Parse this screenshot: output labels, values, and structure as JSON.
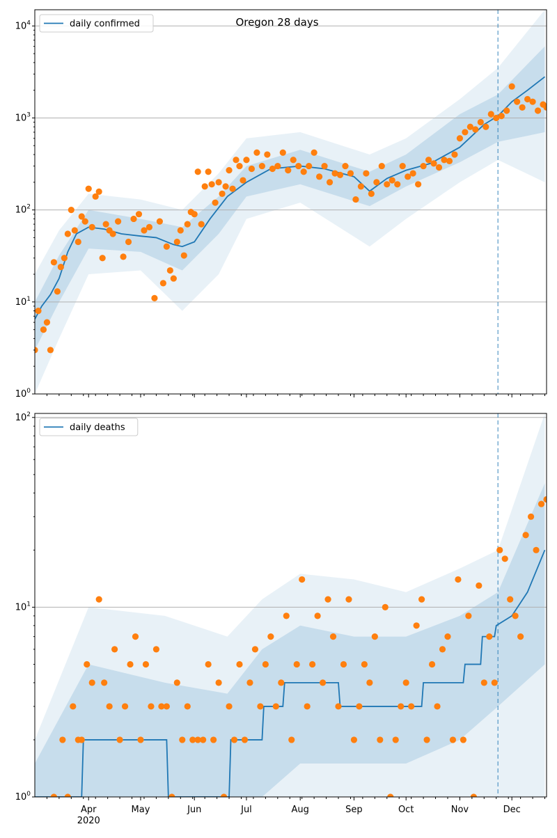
{
  "figure_title": "Oregon 28 days",
  "colors": {
    "model_line": "#1f77b4",
    "band": "#1f77b4",
    "observed_points": "#ff7f0e",
    "grid": "#b0b0b0",
    "forecast_marker": "#1f77b4"
  },
  "chart_data": [
    {
      "type": "line",
      "panel": "top",
      "title": "Oregon 28 days",
      "legend": [
        "daily confirmed"
      ],
      "legend_position": "top-left",
      "xlabel": "",
      "ylabel": "",
      "x_tick_labels": [
        "Apr\n2020",
        "May",
        "Jun",
        "Jul",
        "Aug",
        "Sep",
        "Oct",
        "Nov",
        "Dec"
      ],
      "x_tick_dates": [
        "2020-04-01",
        "2020-05-01",
        "2020-06-01",
        "2020-07-01",
        "2020-08-01",
        "2020-09-01",
        "2020-10-01",
        "2020-11-01",
        "2020-12-01"
      ],
      "xlim": [
        "2020-03-01",
        "2020-12-21"
      ],
      "yscale": "log",
      "ylim": [
        1,
        15000
      ],
      "y_tick_labels": [
        "10^0",
        "10^1",
        "10^2",
        "10^3",
        "10^4"
      ],
      "grid": "horizontal major",
      "forecast_start": "2020-11-23",
      "series": [
        {
          "name": "daily confirmed",
          "kind": "line",
          "x": [
            "2020-03-01",
            "2020-03-05",
            "2020-03-10",
            "2020-03-15",
            "2020-03-20",
            "2020-03-25",
            "2020-04-01",
            "2020-04-10",
            "2020-04-20",
            "2020-05-01",
            "2020-05-10",
            "2020-05-20",
            "2020-05-25",
            "2020-06-01",
            "2020-06-10",
            "2020-06-20",
            "2020-07-01",
            "2020-07-15",
            "2020-08-01",
            "2020-08-15",
            "2020-09-01",
            "2020-09-10",
            "2020-09-20",
            "2020-10-01",
            "2020-10-15",
            "2020-11-01",
            "2020-11-15",
            "2020-11-23",
            "2020-12-01",
            "2020-12-10",
            "2020-12-20"
          ],
          "y": [
            6.5,
            9,
            12,
            18,
            35,
            55,
            65,
            62,
            55,
            52,
            50,
            42,
            40,
            45,
            80,
            140,
            200,
            280,
            300,
            280,
            230,
            160,
            220,
            270,
            320,
            480,
            850,
            1050,
            1500,
            2000,
            2800
          ]
        },
        {
          "name": "outer band",
          "kind": "band",
          "x": [
            "2020-03-01",
            "2020-03-15",
            "2020-04-01",
            "2020-05-01",
            "2020-05-25",
            "2020-06-15",
            "2020-07-01",
            "2020-08-01",
            "2020-09-10",
            "2020-10-01",
            "2020-11-01",
            "2020-11-23",
            "2020-12-20"
          ],
          "lower": [
            1,
            4,
            20,
            22,
            8,
            20,
            80,
            120,
            40,
            80,
            200,
            350,
            200
          ],
          "upper": [
            20,
            60,
            150,
            130,
            100,
            250,
            600,
            700,
            400,
            600,
            1600,
            3500,
            15000
          ]
        },
        {
          "name": "inner band",
          "kind": "band",
          "x": [
            "2020-03-01",
            "2020-03-15",
            "2020-04-01",
            "2020-05-01",
            "2020-05-25",
            "2020-06-15",
            "2020-07-01",
            "2020-08-01",
            "2020-09-10",
            "2020-10-01",
            "2020-11-01",
            "2020-11-23",
            "2020-12-20"
          ],
          "lower": [
            3,
            10,
            38,
            35,
            22,
            55,
            140,
            190,
            110,
            180,
            330,
            550,
            700
          ],
          "upper": [
            10,
            32,
            100,
            80,
            65,
            140,
            300,
            450,
            260,
            400,
            1100,
            1800,
            6000
          ]
        },
        {
          "name": "observed",
          "kind": "scatter",
          "x": [
            "2020-03-01",
            "2020-03-03",
            "2020-03-06",
            "2020-03-08",
            "2020-03-10",
            "2020-03-12",
            "2020-03-14",
            "2020-03-16",
            "2020-03-18",
            "2020-03-20",
            "2020-03-22",
            "2020-03-24",
            "2020-03-26",
            "2020-03-28",
            "2020-03-30",
            "2020-04-01",
            "2020-04-03",
            "2020-04-05",
            "2020-04-07",
            "2020-04-09",
            "2020-04-11",
            "2020-04-13",
            "2020-04-15",
            "2020-04-18",
            "2020-04-21",
            "2020-04-24",
            "2020-04-27",
            "2020-04-30",
            "2020-05-03",
            "2020-05-06",
            "2020-05-09",
            "2020-05-12",
            "2020-05-14",
            "2020-05-16",
            "2020-05-18",
            "2020-05-20",
            "2020-05-22",
            "2020-05-24",
            "2020-05-26",
            "2020-05-28",
            "2020-05-30",
            "2020-06-01",
            "2020-06-03",
            "2020-06-05",
            "2020-06-07",
            "2020-06-09",
            "2020-06-11",
            "2020-06-13",
            "2020-06-15",
            "2020-06-17",
            "2020-06-19",
            "2020-06-21",
            "2020-06-23",
            "2020-06-25",
            "2020-06-27",
            "2020-06-29",
            "2020-07-01",
            "2020-07-04",
            "2020-07-07",
            "2020-07-10",
            "2020-07-13",
            "2020-07-16",
            "2020-07-19",
            "2020-07-22",
            "2020-07-25",
            "2020-07-28",
            "2020-07-31",
            "2020-08-03",
            "2020-08-06",
            "2020-08-09",
            "2020-08-12",
            "2020-08-15",
            "2020-08-18",
            "2020-08-21",
            "2020-08-24",
            "2020-08-27",
            "2020-08-30",
            "2020-09-02",
            "2020-09-05",
            "2020-09-08",
            "2020-09-11",
            "2020-09-14",
            "2020-09-17",
            "2020-09-20",
            "2020-09-23",
            "2020-09-26",
            "2020-09-29",
            "2020-10-02",
            "2020-10-05",
            "2020-10-08",
            "2020-10-11",
            "2020-10-14",
            "2020-10-17",
            "2020-10-20",
            "2020-10-23",
            "2020-10-26",
            "2020-10-29",
            "2020-11-01",
            "2020-11-04",
            "2020-11-07",
            "2020-11-10",
            "2020-11-13",
            "2020-11-16",
            "2020-11-19",
            "2020-11-22",
            "2020-11-25",
            "2020-11-28",
            "2020-12-01",
            "2020-12-04",
            "2020-12-07",
            "2020-12-10",
            "2020-12-13",
            "2020-12-16",
            "2020-12-19",
            "2020-12-21"
          ],
          "y": [
            3,
            8,
            5,
            6,
            3,
            27,
            13,
            24,
            30,
            55,
            100,
            60,
            45,
            85,
            75,
            170,
            65,
            140,
            158,
            30,
            70,
            60,
            55,
            75,
            31,
            45,
            80,
            90,
            60,
            65,
            11,
            75,
            16,
            40,
            22,
            18,
            45,
            60,
            32,
            70,
            95,
            90,
            260,
            70,
            180,
            260,
            190,
            120,
            200,
            150,
            180,
            270,
            170,
            350,
            300,
            210,
            350,
            280,
            420,
            300,
            400,
            280,
            300,
            420,
            270,
            350,
            300,
            260,
            300,
            420,
            230,
            300,
            200,
            250,
            240,
            300,
            250,
            130,
            180,
            250,
            150,
            200,
            300,
            190,
            210,
            190,
            300,
            230,
            250,
            190,
            300,
            350,
            320,
            290,
            350,
            340,
            400,
            600,
            700,
            800,
            750,
            900,
            800,
            1100,
            1000,
            1050,
            1200,
            2200,
            1500,
            1300,
            1600,
            1500,
            1200,
            1400,
            1300
          ]
        }
      ]
    },
    {
      "type": "line",
      "panel": "bottom",
      "legend": [
        "daily deaths"
      ],
      "legend_position": "top-left",
      "xlabel": "",
      "ylabel": "",
      "x_tick_labels": [
        "Apr\n2020",
        "May",
        "Jun",
        "Jul",
        "Aug",
        "Sep",
        "Oct",
        "Nov",
        "Dec"
      ],
      "xlim": [
        "2020-03-01",
        "2020-12-21"
      ],
      "yscale": "log",
      "ylim": [
        1,
        105
      ],
      "y_tick_labels": [
        "10^0",
        "10^1",
        "10^2"
      ],
      "grid": "horizontal major",
      "forecast_start": "2020-11-23",
      "series": [
        {
          "name": "daily deaths",
          "kind": "line",
          "x": [
            "2020-03-01",
            "2020-03-28",
            "2020-03-29",
            "2020-05-16",
            "2020-05-17",
            "2020-06-21",
            "2020-06-22",
            "2020-07-10",
            "2020-07-11",
            "2020-07-22",
            "2020-07-23",
            "2020-08-23",
            "2020-08-24",
            "2020-10-10",
            "2020-10-11",
            "2020-11-03",
            "2020-11-04",
            "2020-11-13",
            "2020-11-14",
            "2020-11-21",
            "2020-11-22",
            "2020-12-01",
            "2020-12-10",
            "2020-12-20"
          ],
          "y": [
            1,
            1,
            2,
            2,
            1,
            1,
            2,
            2,
            3,
            3,
            4,
            4,
            3,
            3,
            4,
            4,
            5,
            5,
            7,
            7,
            8,
            9,
            12,
            20
          ]
        },
        {
          "name": "outer band",
          "kind": "band",
          "x": [
            "2020-03-01",
            "2020-04-01",
            "2020-05-15",
            "2020-06-20",
            "2020-07-10",
            "2020-08-01",
            "2020-09-01",
            "2020-10-01",
            "2020-11-01",
            "2020-11-23",
            "2020-12-20"
          ],
          "lower": [
            1,
            1,
            1,
            1,
            1,
            1,
            1,
            1,
            1,
            1,
            1
          ],
          "upper": [
            2,
            10,
            9,
            7,
            11,
            15,
            14,
            12,
            16,
            20,
            105
          ]
        },
        {
          "name": "inner band",
          "kind": "band",
          "x": [
            "2020-03-01",
            "2020-04-01",
            "2020-05-15",
            "2020-06-20",
            "2020-07-10",
            "2020-08-01",
            "2020-09-01",
            "2020-10-01",
            "2020-11-01",
            "2020-11-23",
            "2020-12-20"
          ],
          "lower": [
            1,
            1,
            1,
            1,
            1,
            1.5,
            1.5,
            1.5,
            2,
            3,
            5
          ],
          "upper": [
            1.5,
            5,
            4,
            3.5,
            6,
            8,
            7,
            7,
            9,
            12,
            45
          ]
        },
        {
          "name": "observed",
          "kind": "scatter",
          "x": [
            "2020-03-12",
            "2020-03-17",
            "2020-03-20",
            "2020-03-23",
            "2020-03-26",
            "2020-03-28",
            "2020-03-31",
            "2020-04-03",
            "2020-04-07",
            "2020-04-10",
            "2020-04-13",
            "2020-04-16",
            "2020-04-19",
            "2020-04-22",
            "2020-04-25",
            "2020-04-28",
            "2020-05-01",
            "2020-05-04",
            "2020-05-07",
            "2020-05-10",
            "2020-05-13",
            "2020-05-16",
            "2020-05-19",
            "2020-05-22",
            "2020-05-25",
            "2020-05-28",
            "2020-05-31",
            "2020-06-03",
            "2020-06-06",
            "2020-06-09",
            "2020-06-12",
            "2020-06-15",
            "2020-06-18",
            "2020-06-21",
            "2020-06-24",
            "2020-06-27",
            "2020-06-30",
            "2020-07-03",
            "2020-07-06",
            "2020-07-09",
            "2020-07-12",
            "2020-07-15",
            "2020-07-18",
            "2020-07-21",
            "2020-07-24",
            "2020-07-27",
            "2020-07-30",
            "2020-08-02",
            "2020-08-05",
            "2020-08-08",
            "2020-08-11",
            "2020-08-14",
            "2020-08-17",
            "2020-08-20",
            "2020-08-23",
            "2020-08-26",
            "2020-08-29",
            "2020-09-01",
            "2020-09-04",
            "2020-09-07",
            "2020-09-10",
            "2020-09-13",
            "2020-09-16",
            "2020-09-19",
            "2020-09-22",
            "2020-09-25",
            "2020-09-28",
            "2020-10-01",
            "2020-10-04",
            "2020-10-07",
            "2020-10-10",
            "2020-10-13",
            "2020-10-16",
            "2020-10-19",
            "2020-10-22",
            "2020-10-25",
            "2020-10-28",
            "2020-10-31",
            "2020-11-03",
            "2020-11-06",
            "2020-11-09",
            "2020-11-12",
            "2020-11-15",
            "2020-11-18",
            "2020-11-21",
            "2020-11-24",
            "2020-11-27",
            "2020-11-30",
            "2020-12-03",
            "2020-12-06",
            "2020-12-09",
            "2020-12-12",
            "2020-12-15",
            "2020-12-18",
            "2020-12-21"
          ],
          "y": [
            1,
            2,
            1,
            3,
            2,
            2,
            5,
            4,
            11,
            4,
            3,
            6,
            2,
            3,
            5,
            7,
            2,
            5,
            3,
            6,
            3,
            3,
            1,
            4,
            2,
            3,
            2,
            2,
            2,
            5,
            2,
            4,
            1,
            3,
            2,
            5,
            2,
            4,
            6,
            3,
            5,
            7,
            3,
            4,
            9,
            2,
            5,
            14,
            3,
            5,
            9,
            4,
            11,
            7,
            3,
            5,
            11,
            2,
            3,
            5,
            4,
            7,
            2,
            10,
            1,
            2,
            3,
            4,
            3,
            8,
            11,
            2,
            5,
            3,
            6,
            7,
            2,
            14,
            2,
            9,
            1,
            13,
            4,
            7,
            4,
            20,
            18,
            11,
            9,
            7,
            24,
            30,
            20,
            35,
            37
          ]
        }
      ]
    }
  ]
}
